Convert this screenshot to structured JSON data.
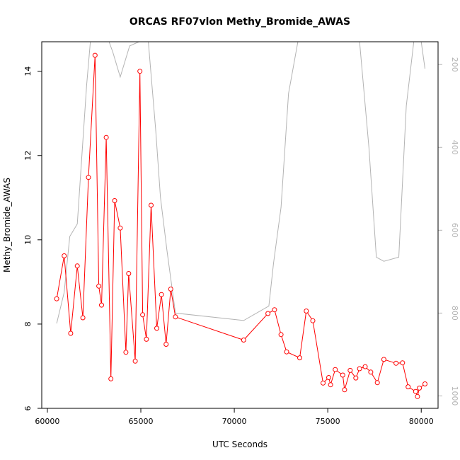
{
  "chart_data": {
    "type": "line",
    "title": "ORCAS RF07vlon Methy_Bromide_AWAS",
    "xlabel": "UTC Seconds",
    "ylabel": "Methy_Bromide_AWAS",
    "xlim": [
      59700,
      80900
    ],
    "ylim": [
      6.0,
      14.7
    ],
    "x_ticks": [
      60000,
      65000,
      70000,
      75000,
      80000
    ],
    "y_ticks": [
      6,
      8,
      10,
      12,
      14
    ],
    "y2_ticks": [
      200,
      400,
      600,
      800,
      1000
    ],
    "y2lim": [
      1030,
      145
    ],
    "grid": false,
    "series": [
      {
        "role": "primary",
        "color": "#ff0000",
        "markers": "open-circle",
        "x": [
          60500,
          60900,
          61250,
          61600,
          61900,
          62200,
          62550,
          62750,
          62900,
          63150,
          63400,
          63600,
          63900,
          64200,
          64350,
          64700,
          64950,
          65100,
          65300,
          65550,
          65850,
          66100,
          66350,
          66600,
          66850,
          70500,
          71800,
          72150,
          72500,
          72800,
          73500,
          73850,
          74200,
          74750,
          75050,
          75150,
          75400,
          75800,
          75900,
          76200,
          76500,
          76700,
          77000,
          77300,
          77650,
          78000,
          78650,
          79000,
          79300,
          79700,
          79800,
          79900,
          80200
        ],
        "y": [
          8.6,
          9.62,
          7.78,
          9.38,
          8.15,
          11.48,
          14.38,
          8.9,
          8.45,
          12.43,
          6.7,
          10.93,
          10.28,
          7.33,
          9.2,
          7.12,
          14.0,
          8.22,
          7.64,
          10.82,
          7.9,
          8.7,
          7.52,
          8.83,
          8.17,
          7.62,
          8.25,
          8.34,
          7.75,
          7.34,
          7.2,
          8.31,
          8.08,
          6.6,
          6.73,
          6.56,
          6.92,
          6.79,
          6.44,
          6.9,
          6.72,
          6.94,
          6.99,
          6.86,
          6.61,
          7.16,
          7.07,
          7.08,
          6.51,
          6.4,
          6.28,
          6.48,
          6.58
        ]
      },
      {
        "role": "secondary",
        "color": "#b3b3b3",
        "axis": "right",
        "x": [
          60500,
          60900,
          61200,
          61600,
          62100,
          62300,
          63300,
          63500,
          63900,
          64400,
          64900,
          65400,
          65800,
          66050,
          66400,
          66850,
          70500,
          71850,
          72100,
          72500,
          72900,
          73400,
          73800,
          74800,
          75600,
          76700,
          77200,
          77600,
          78000,
          78800,
          79200,
          79600,
          80000,
          80200
        ],
        "y": [
          825,
          750,
          615,
          585,
          250,
          120,
          120,
          170,
          230,
          155,
          120,
          120,
          360,
          520,
          650,
          800,
          818,
          783,
          680,
          545,
          270,
          120,
          120,
          120,
          120,
          120,
          400,
          665,
          675,
          665,
          300,
          120,
          120,
          210
        ]
      }
    ]
  }
}
